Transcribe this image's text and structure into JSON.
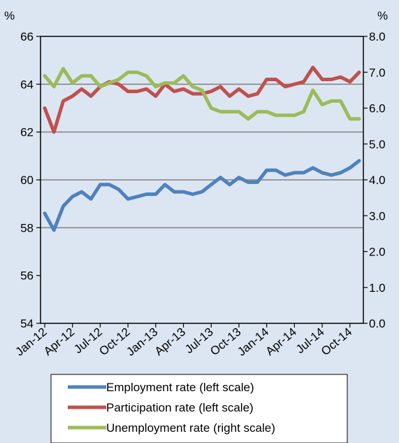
{
  "chart_data": {
    "type": "line",
    "left_unit": "%",
    "right_unit": "%",
    "left_axis": {
      "ylim": [
        54,
        66
      ],
      "ticks": [
        "54",
        "56",
        "58",
        "60",
        "62",
        "64",
        "66"
      ]
    },
    "right_axis": {
      "ylim": [
        0,
        8
      ],
      "ticks": [
        "0.0",
        "1.0",
        "2.0",
        "3.0",
        "4.0",
        "5.0",
        "6.0",
        "7.0",
        "8.0"
      ]
    },
    "x_tick_labels": [
      "Jan-12",
      "Apr-12",
      "Jul-12",
      "Oct-12",
      "Jan-13",
      "Apr-13",
      "Jul-13",
      "Oct-13",
      "Jan-14",
      "Apr-14",
      "Jul-14",
      "Oct-14"
    ],
    "gridlines": [
      58,
      60,
      62,
      64
    ],
    "series": [
      {
        "name": "Employment rate (left scale)",
        "axis": "left",
        "color": "#4f81bd",
        "values": [
          58.6,
          57.9,
          58.9,
          59.3,
          59.5,
          59.2,
          59.8,
          59.8,
          59.6,
          59.2,
          59.3,
          59.4,
          59.4,
          59.8,
          59.5,
          59.5,
          59.4,
          59.5,
          59.8,
          60.1,
          59.8,
          60.1,
          59.9,
          59.9,
          60.4,
          60.4,
          60.2,
          60.3,
          60.3,
          60.5,
          60.3,
          60.2,
          60.3,
          60.5,
          60.8
        ]
      },
      {
        "name": "Participation rate (left scale)",
        "axis": "left",
        "color": "#c0504d",
        "values": [
          63.0,
          62.0,
          63.3,
          63.5,
          63.8,
          63.5,
          63.9,
          64.1,
          64.0,
          63.7,
          63.7,
          63.8,
          63.5,
          64.0,
          63.7,
          63.8,
          63.6,
          63.6,
          63.7,
          63.9,
          63.5,
          63.8,
          63.5,
          63.6,
          64.2,
          64.2,
          63.9,
          64.0,
          64.1,
          64.7,
          64.2,
          64.2,
          64.3,
          64.1,
          64.5
        ]
      },
      {
        "name": "Unemployment rate (right scale)",
        "axis": "right",
        "color": "#9bbb59",
        "values": [
          6.9,
          6.6,
          7.1,
          6.7,
          6.9,
          6.9,
          6.6,
          6.7,
          6.8,
          7.0,
          7.0,
          6.9,
          6.6,
          6.7,
          6.7,
          6.9,
          6.6,
          6.5,
          6.0,
          5.9,
          5.9,
          5.9,
          5.7,
          5.9,
          5.9,
          5.8,
          5.8,
          5.8,
          5.9,
          6.5,
          6.1,
          6.2,
          6.2,
          5.7,
          5.7
        ]
      }
    ]
  }
}
